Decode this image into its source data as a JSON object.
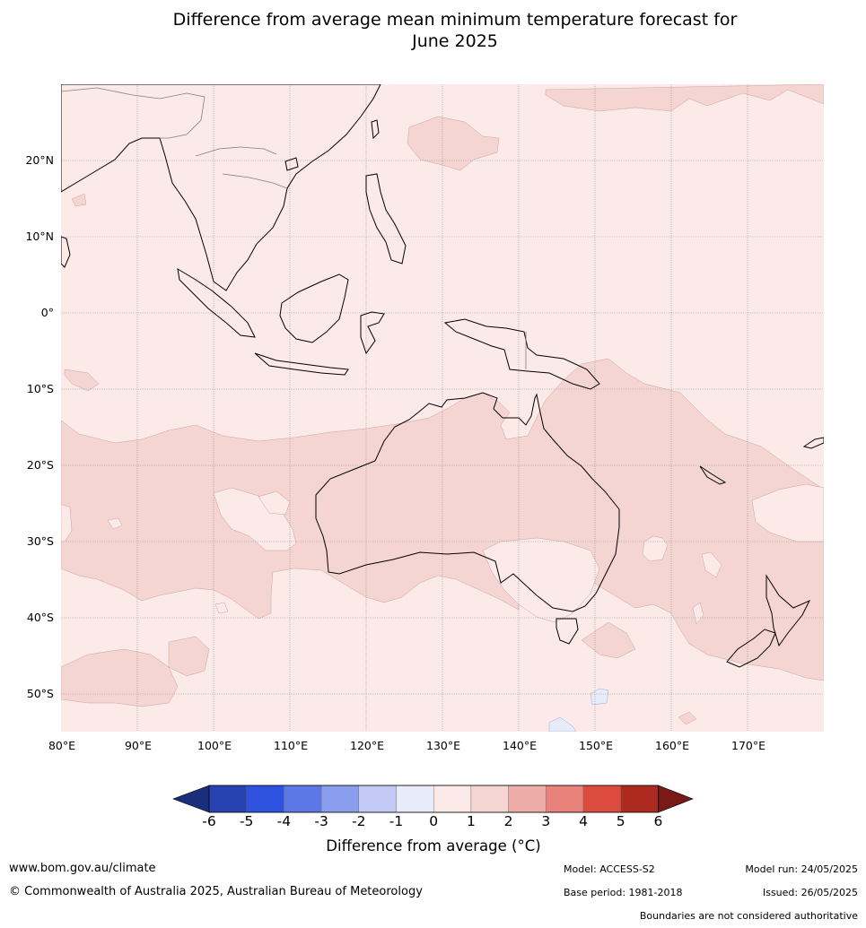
{
  "title_line1": "Difference from average mean minimum temperature forecast for",
  "title_line2": "June 2025",
  "map": {
    "lat_labels": [
      "20°N",
      "10°N",
      "0°",
      "10°S",
      "20°S",
      "30°S",
      "40°S",
      "50°S"
    ],
    "lon_labels": [
      "80°E",
      "90°E",
      "100°E",
      "110°E",
      "120°E",
      "130°E",
      "140°E",
      "150°E",
      "160°E",
      "170°E"
    ],
    "colors": {
      "ocean_0_1": "#fceae8",
      "land_0_1": "#fceae8",
      "band_1_2": "#f4d5d2",
      "neg_minus1_0": "#e8ecfa",
      "coast": "#000000",
      "border": "#808080",
      "grid": "#999999"
    }
  },
  "colorbar": {
    "ticks": [
      "-6",
      "-5",
      "-4",
      "-3",
      "-2",
      "-1",
      "0",
      "1",
      "2",
      "3",
      "4",
      "5",
      "6"
    ],
    "colors": [
      "#1b2e7c",
      "#2842b2",
      "#2f52e0",
      "#5d78e6",
      "#8b9ded",
      "#c1c9f4",
      "#e8ecfa",
      "#fceae8",
      "#f4d5d2",
      "#ecaca7",
      "#e8827a",
      "#dc4b3e",
      "#ad2a21",
      "#7a1a16"
    ],
    "label": "Difference from average (°C)"
  },
  "footer": {
    "website": "www.bom.gov.au/climate",
    "copyright": "© Commonwealth of Australia 2025, Australian Bureau of Meteorology",
    "model": "Model: ACCESS-S2",
    "base_period": "Base period: 1981-2018",
    "model_run": "Model run: 24/05/2025",
    "issued": "Issued: 26/05/2025",
    "disclaimer": "Boundaries are not considered authoritative"
  }
}
